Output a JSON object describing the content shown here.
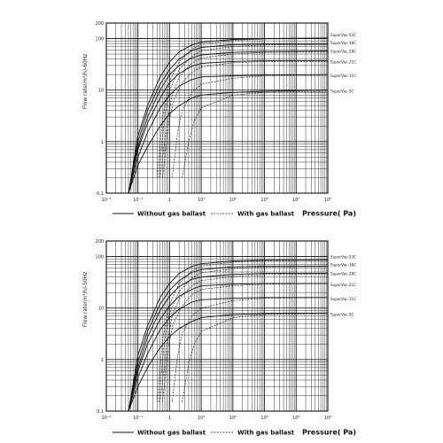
{
  "legend": {
    "without": "Without gas ballast",
    "with": "With gas ballast"
  },
  "chart_data": [
    {
      "type": "line",
      "ylabel": "Flow rate(m³/h)-60Hz",
      "xlabel": "Pressure( Pa)",
      "xscale": "log",
      "yscale": "log",
      "xlim": [
        0.01,
        100000
      ],
      "ylim": [
        0.1,
        200
      ],
      "x_ticks": [
        "10⁻²",
        "10⁻¹",
        "1",
        "10¹",
        "10²",
        "10³",
        "10⁴",
        "10⁵"
      ],
      "y_ticks": [
        "0.1",
        "1",
        "10",
        "100",
        "200"
      ],
      "grid": true,
      "series": [
        {
          "name": "SuperVac-53C",
          "style": "solid",
          "x": [
            0.05,
            0.1,
            0.2,
            0.5,
            1,
            2,
            5,
            10,
            100,
            1000,
            100000
          ],
          "y": [
            0.1,
            1.3,
            5,
            18,
            35,
            55,
            75,
            85,
            96,
            100,
            102
          ]
        },
        {
          "name": "SuperVac-38C",
          "style": "solid",
          "x": [
            0.05,
            0.1,
            0.2,
            0.5,
            1,
            2,
            5,
            10,
            100,
            1000,
            100000
          ],
          "y": [
            0.1,
            1,
            4,
            13,
            25,
            40,
            58,
            67,
            76,
            78,
            78
          ]
        },
        {
          "name": "SuperVac-28C",
          "style": "solid",
          "x": [
            0.05,
            0.1,
            0.2,
            0.5,
            1,
            2,
            5,
            10,
            100,
            1000,
            100000
          ],
          "y": [
            0.1,
            0.8,
            3,
            10,
            20,
            30,
            42,
            48,
            54,
            56,
            57
          ]
        },
        {
          "name": "SuperVac-21C",
          "style": "solid",
          "x": [
            0.05,
            0.1,
            0.2,
            0.5,
            1,
            2,
            5,
            10,
            100,
            1000,
            100000
          ],
          "y": [
            0.1,
            0.7,
            2.3,
            7,
            14,
            21,
            29,
            33,
            36,
            37,
            37
          ]
        },
        {
          "name": "SuperVac-11C",
          "style": "solid",
          "x": [
            0.05,
            0.1,
            0.2,
            0.5,
            1,
            2,
            5,
            10,
            100,
            1000,
            100000
          ],
          "y": [
            0.1,
            0.5,
            1.5,
            4.5,
            8,
            12,
            16,
            18,
            19,
            19.5,
            20
          ]
        },
        {
          "name": "SuperVac-5C",
          "style": "solid",
          "x": [
            0.05,
            0.1,
            0.2,
            0.5,
            1,
            2,
            5,
            10,
            100,
            1000,
            100000
          ],
          "y": [
            0.1,
            0.35,
            0.8,
            2,
            3.5,
            5,
            7,
            8,
            9,
            9.5,
            10
          ]
        },
        {
          "name": "SuperVac-53C",
          "style": "dashed",
          "x": [
            0.4,
            0.6,
            1,
            2,
            5,
            10,
            100,
            1000,
            100000
          ],
          "y": [
            0.2,
            3,
            15,
            35,
            62,
            78,
            92,
            98,
            100
          ]
        },
        {
          "name": "SuperVac-38C",
          "style": "dashed",
          "x": [
            0.45,
            0.7,
            1,
            2,
            5,
            10,
            100,
            1000,
            100000
          ],
          "y": [
            0.2,
            3,
            10,
            25,
            45,
            58,
            70,
            75,
            77
          ]
        },
        {
          "name": "SuperVac-28C",
          "style": "dashed",
          "x": [
            0.5,
            0.8,
            1.2,
            2,
            5,
            10,
            100,
            1000,
            100000
          ],
          "y": [
            0.2,
            2,
            8,
            18,
            33,
            42,
            50,
            54,
            55
          ]
        },
        {
          "name": "SuperVac-21C",
          "style": "dashed",
          "x": [
            0.6,
            0.9,
            1.3,
            2.5,
            5,
            10,
            100,
            1000,
            100000
          ],
          "y": [
            0.2,
            2,
            6,
            14,
            22,
            28,
            34,
            36,
            36
          ]
        },
        {
          "name": "SuperVac-11C",
          "style": "dashed",
          "x": [
            1.2,
            1.8,
            2.5,
            5,
            10,
            100,
            1000,
            100000
          ],
          "y": [
            0.2,
            1.5,
            4,
            9,
            13,
            17,
            19,
            19
          ]
        },
        {
          "name": "SuperVac-5C",
          "style": "dashed",
          "x": [
            2.5,
            4,
            6,
            10,
            100,
            1000,
            100000
          ],
          "y": [
            0.2,
            1,
            2.5,
            4.5,
            8,
            9,
            9.5
          ]
        }
      ]
    },
    {
      "type": "line",
      "ylabel": "Flow rate(m³/h)-50Hz",
      "xlabel": "Pressure( Pa)",
      "xscale": "log",
      "yscale": "log",
      "xlim": [
        0.01,
        100000
      ],
      "ylim": [
        0.1,
        200
      ],
      "x_ticks": [
        "10⁻²",
        "10⁻¹",
        "1",
        "10¹",
        "10²",
        "10³",
        "10⁴",
        "10⁵"
      ],
      "y_ticks": [
        "0.1",
        "1",
        "10",
        "100",
        "200"
      ],
      "grid": true,
      "series": [
        {
          "name": "SuperVac-53C",
          "style": "solid",
          "x": [
            0.05,
            0.1,
            0.2,
            0.5,
            1,
            2,
            5,
            10,
            100,
            1000,
            100000
          ],
          "y": [
            0.1,
            1.2,
            4.5,
            16,
            30,
            47,
            64,
            72,
            82,
            85,
            86
          ]
        },
        {
          "name": "SuperVac-38C",
          "style": "solid",
          "x": [
            0.05,
            0.1,
            0.2,
            0.5,
            1,
            2,
            5,
            10,
            100,
            1000,
            100000
          ],
          "y": [
            0.1,
            0.9,
            3.5,
            12,
            22,
            34,
            49,
            56,
            63,
            65,
            65
          ]
        },
        {
          "name": "SuperVac-28C",
          "style": "solid",
          "x": [
            0.05,
            0.1,
            0.2,
            0.5,
            1,
            2,
            5,
            10,
            100,
            1000,
            100000
          ],
          "y": [
            0.1,
            0.7,
            2.7,
            9,
            17,
            26,
            36,
            40,
            45,
            47,
            47
          ]
        },
        {
          "name": "SuperVac-21C",
          "style": "solid",
          "x": [
            0.05,
            0.1,
            0.2,
            0.5,
            1,
            2,
            5,
            10,
            100,
            1000,
            100000
          ],
          "y": [
            0.1,
            0.6,
            2,
            6,
            11,
            17,
            23,
            27,
            29,
            30,
            30
          ]
        },
        {
          "name": "SuperVac-11C",
          "style": "solid",
          "x": [
            0.05,
            0.1,
            0.2,
            0.5,
            1,
            2,
            5,
            10,
            100,
            1000,
            100000
          ],
          "y": [
            0.1,
            0.45,
            1.3,
            3.8,
            6.5,
            9.5,
            13,
            14.5,
            15.5,
            16,
            16
          ]
        },
        {
          "name": "SuperVac-5C",
          "style": "solid",
          "x": [
            0.05,
            0.1,
            0.2,
            0.5,
            1,
            2,
            5,
            10,
            100,
            1000,
            100000
          ],
          "y": [
            0.1,
            0.3,
            0.7,
            1.7,
            2.8,
            4,
            5.5,
            6.5,
            7.5,
            7.8,
            8
          ]
        },
        {
          "name": "SuperVac-53C",
          "style": "dashed",
          "x": [
            0.4,
            0.6,
            1,
            2,
            5,
            10,
            100,
            1000,
            100000
          ],
          "y": [
            0.15,
            2.5,
            12,
            30,
            52,
            65,
            78,
            83,
            85
          ]
        },
        {
          "name": "SuperVac-38C",
          "style": "dashed",
          "x": [
            0.45,
            0.7,
            1,
            2,
            5,
            10,
            100,
            1000,
            100000
          ],
          "y": [
            0.15,
            2.5,
            8,
            21,
            38,
            48,
            58,
            63,
            64
          ]
        },
        {
          "name": "SuperVac-28C",
          "style": "dashed",
          "x": [
            0.5,
            0.8,
            1.2,
            2,
            5,
            10,
            100,
            1000,
            100000
          ],
          "y": [
            0.15,
            1.8,
            7,
            15,
            27,
            34,
            41,
            45,
            46
          ]
        },
        {
          "name": "SuperVac-21C",
          "style": "dashed",
          "x": [
            0.6,
            0.9,
            1.3,
            2.5,
            5,
            10,
            100,
            1000,
            100000
          ],
          "y": [
            0.15,
            1.7,
            5,
            11,
            18,
            23,
            27,
            29,
            30
          ]
        },
        {
          "name": "SuperVac-11C",
          "style": "dashed",
          "x": [
            1.2,
            1.8,
            2.5,
            5,
            10,
            100,
            1000,
            100000
          ],
          "y": [
            0.15,
            1.2,
            3.2,
            7,
            10,
            14,
            15.5,
            16
          ]
        },
        {
          "name": "SuperVac-5C",
          "style": "dashed",
          "x": [
            2.5,
            4,
            6,
            10,
            100,
            1000,
            100000
          ],
          "y": [
            0.15,
            0.8,
            2,
            3.5,
            6.5,
            7.5,
            7.8
          ]
        }
      ]
    }
  ]
}
